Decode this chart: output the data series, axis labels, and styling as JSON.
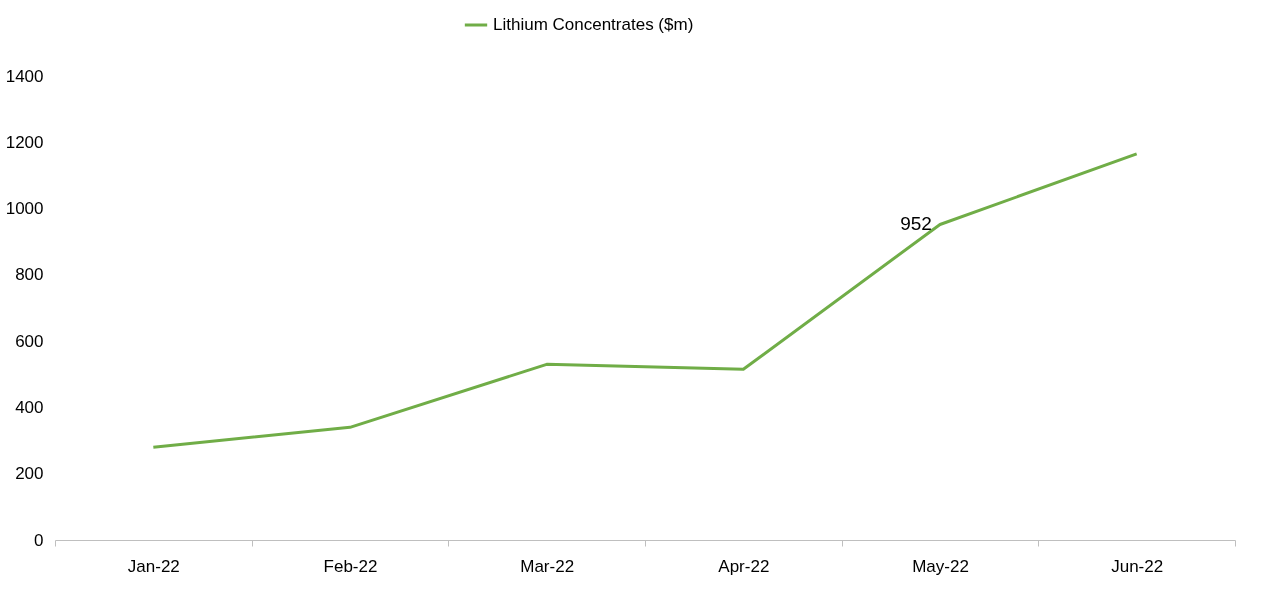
{
  "chart_data": {
    "type": "line",
    "categories": [
      "Jan-22",
      "Feb-22",
      "Mar-22",
      "Apr-22",
      "May-22",
      "Jun-22"
    ],
    "series": [
      {
        "name": "Lithium Concentrates ($m)",
        "color": "#70ad47",
        "values": [
          280,
          340,
          530,
          515,
          952,
          1165
        ],
        "value_labels": [
          null,
          null,
          null,
          null,
          "952",
          null
        ]
      }
    ],
    "ylim": [
      0,
      1400
    ],
    "yticks": [
      0,
      200,
      400,
      600,
      800,
      1000,
      1200,
      1400
    ],
    "grid": false,
    "legend": "top",
    "marker": "none",
    "line_style": "solid"
  }
}
